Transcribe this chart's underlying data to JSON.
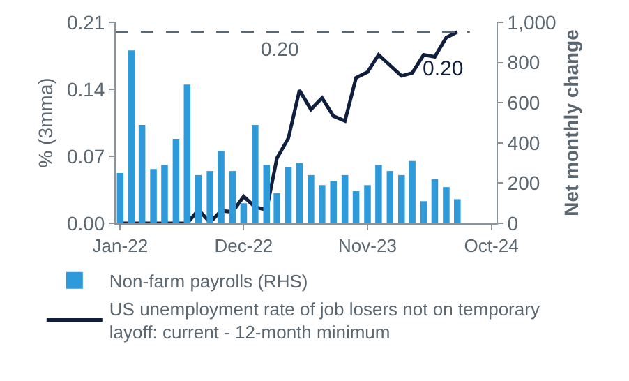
{
  "chart_data": {
    "type": "bar",
    "x": [
      "2022-01",
      "2022-02",
      "2022-03",
      "2022-04",
      "2022-05",
      "2022-06",
      "2022-07",
      "2022-08",
      "2022-09",
      "2022-10",
      "2022-11",
      "2022-12",
      "2023-01",
      "2023-02",
      "2023-03",
      "2023-04",
      "2023-05",
      "2023-06",
      "2023-07",
      "2023-08",
      "2023-09",
      "2023-10",
      "2023-11",
      "2023-12",
      "2024-01",
      "2024-02",
      "2024-03",
      "2024-04",
      "2024-05",
      "2024-06",
      "2024-07"
    ],
    "series": [
      {
        "name": "Non-farm payrolls (RHS)",
        "axis": "y2",
        "color": "#2e9ad9",
        "values": [
          250,
          860,
          490,
          270,
          290,
          420,
          690,
          240,
          260,
          360,
          260,
          100,
          490,
          290,
          150,
          280,
          300,
          240,
          190,
          210,
          240,
          160,
          190,
          290,
          260,
          240,
          310,
          110,
          220,
          180,
          120
        ]
      },
      {
        "name": "US unemployment rate of job losers not on temporary layoff: current - 12-month minimum",
        "type": "line",
        "color": "#0f1f3d",
        "values": [
          0,
          0,
          0,
          0,
          0,
          0,
          0,
          0.014,
          0.001,
          0.013,
          0.012,
          0.028,
          0.017,
          0.014,
          0.068,
          0.089,
          0.139,
          0.119,
          0.131,
          0.112,
          0.107,
          0.152,
          0.158,
          0.176,
          0.165,
          0.154,
          0.157,
          0.176,
          0.174,
          0.194,
          0.2
        ]
      }
    ],
    "xlim": [
      "2021-12-20",
      "2024-10-15"
    ],
    "xticks": [
      {
        "value": "2022-01",
        "label": "Jan-22"
      },
      {
        "value": "2022-12",
        "label": "Dec-22"
      },
      {
        "value": "2023-11",
        "label": "Nov-23"
      },
      {
        "value": "2024-10",
        "label": "Oct-24"
      }
    ],
    "ylabel": "% (3mma)",
    "ylim": [
      0,
      0.21
    ],
    "yticks": [
      {
        "value": 0,
        "label": "0.00"
      },
      {
        "value": 0.07,
        "label": "0.07"
      },
      {
        "value": 0.14,
        "label": "0.14"
      },
      {
        "value": 0.21,
        "label": "0.21"
      }
    ],
    "y2label": "Net monthly change",
    "y2lim": [
      0,
      1000
    ],
    "y2ticks": [
      0,
      200,
      400,
      600,
      {
        "value": 800,
        "label": "800"
      },
      {
        "value": 1000,
        "label": "1,000"
      }
    ],
    "ref_lines": [
      {
        "axis": "y",
        "value": 0.2,
        "label": "0.20",
        "color": "#5b6770",
        "line_style": "dashed"
      }
    ],
    "annotations": [
      {
        "text": "0.20",
        "x": "2024-07",
        "y": 0.2
      }
    ],
    "grid": false,
    "legend": "bottom"
  }
}
